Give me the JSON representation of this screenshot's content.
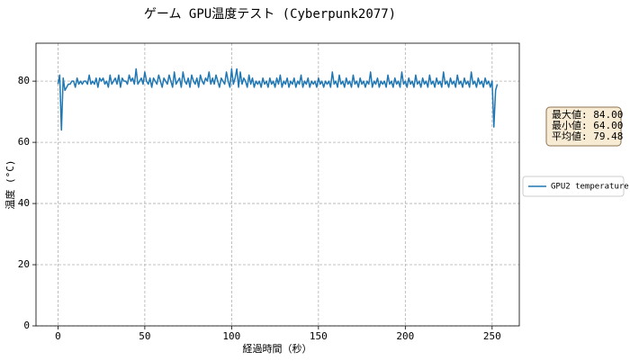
{
  "chart_data": {
    "type": "line",
    "title": "ゲーム GPU温度テスト (Cyberpunk2077)",
    "x_label": "経過時間（秒）",
    "y_label": "温度 (°C)",
    "xlim": [
      -12.65,
      265.65
    ],
    "xticks": [
      0,
      50,
      100,
      150,
      200,
      250
    ],
    "ylim": [
      0,
      92.4
    ],
    "yticks": [
      0,
      20,
      40,
      60,
      80
    ],
    "grid": true,
    "legend": "outside-right",
    "annotations": [
      "最大値: 84.00",
      "最小値: 64.00",
      "平均値: 79.48"
    ],
    "x": [
      0,
      1,
      2,
      3,
      4,
      5,
      6,
      7,
      8,
      9,
      10,
      11,
      12,
      13,
      14,
      15,
      16,
      17,
      18,
      19,
      20,
      21,
      22,
      23,
      24,
      25,
      26,
      27,
      28,
      29,
      30,
      31,
      32,
      33,
      34,
      35,
      36,
      37,
      38,
      39,
      40,
      41,
      42,
      43,
      44,
      45,
      46,
      47,
      48,
      49,
      50,
      51,
      52,
      53,
      54,
      55,
      56,
      57,
      58,
      59,
      60,
      61,
      62,
      63,
      64,
      65,
      66,
      67,
      68,
      69,
      70,
      71,
      72,
      73,
      74,
      75,
      76,
      77,
      78,
      79,
      80,
      81,
      82,
      83,
      84,
      85,
      86,
      87,
      88,
      89,
      90,
      91,
      92,
      93,
      94,
      95,
      96,
      97,
      98,
      99,
      100,
      101,
      102,
      103,
      104,
      105,
      106,
      107,
      108,
      109,
      110,
      111,
      112,
      113,
      114,
      115,
      116,
      117,
      118,
      119,
      120,
      121,
      122,
      123,
      124,
      125,
      126,
      127,
      128,
      129,
      130,
      131,
      132,
      133,
      134,
      135,
      136,
      137,
      138,
      139,
      140,
      141,
      142,
      143,
      144,
      145,
      146,
      147,
      148,
      149,
      150,
      151,
      152,
      153,
      154,
      155,
      156,
      157,
      158,
      159,
      160,
      161,
      162,
      163,
      164,
      165,
      166,
      167,
      168,
      169,
      170,
      171,
      172,
      173,
      174,
      175,
      176,
      177,
      178,
      179,
      180,
      181,
      182,
      183,
      184,
      185,
      186,
      187,
      188,
      189,
      190,
      191,
      192,
      193,
      194,
      195,
      196,
      197,
      198,
      199,
      200,
      201,
      202,
      203,
      204,
      205,
      206,
      207,
      208,
      209,
      210,
      211,
      212,
      213,
      214,
      215,
      216,
      217,
      218,
      219,
      220,
      221,
      222,
      223,
      224,
      225,
      226,
      227,
      228,
      229,
      230,
      231,
      232,
      233,
      234,
      235,
      236,
      237,
      238,
      239,
      240,
      241,
      242,
      243,
      244,
      245,
      246,
      247,
      248,
      249,
      250,
      251,
      252,
      253
    ],
    "series": [
      {
        "name": "GPU2 temperature",
        "color": "#1f77b4",
        "values": [
          79,
          82,
          64,
          81,
          77,
          78,
          79,
          79,
          80,
          80,
          78,
          81,
          79,
          80,
          79,
          80,
          80,
          79,
          82,
          79,
          80,
          79,
          81,
          78,
          81,
          80,
          81,
          79,
          80,
          78,
          82,
          79,
          80,
          81,
          79,
          82,
          78,
          81,
          80,
          80,
          79,
          82,
          80,
          81,
          79,
          84,
          79,
          80,
          81,
          79,
          83,
          80,
          79,
          81,
          78,
          81,
          80,
          79,
          82,
          80,
          78,
          81,
          80,
          79,
          82,
          80,
          78,
          83,
          79,
          80,
          81,
          78,
          83,
          80,
          79,
          81,
          78,
          82,
          80,
          79,
          81,
          78,
          82,
          80,
          79,
          81,
          80,
          83,
          79,
          81,
          79,
          82,
          80,
          78,
          81,
          80,
          79,
          83,
          80,
          78,
          84,
          79,
          81,
          84,
          78,
          83,
          79,
          81,
          80,
          78,
          82,
          79,
          81,
          78,
          80,
          79,
          80,
          78,
          81,
          79,
          80,
          78,
          81,
          79,
          80,
          78,
          81,
          79,
          82,
          78,
          80,
          79,
          81,
          78,
          80,
          79,
          81,
          78,
          80,
          79,
          82,
          78,
          80,
          79,
          81,
          78,
          80,
          79,
          80,
          78,
          81,
          79,
          80,
          78,
          80,
          79,
          80,
          78,
          83,
          79,
          80,
          78,
          82,
          79,
          80,
          78,
          81,
          79,
          80,
          78,
          82,
          79,
          80,
          78,
          81,
          79,
          80,
          78,
          80,
          79,
          83,
          78,
          80,
          79,
          81,
          78,
          80,
          79,
          80,
          78,
          82,
          79,
          80,
          78,
          81,
          79,
          80,
          78,
          83,
          79,
          80,
          78,
          81,
          79,
          80,
          78,
          82,
          79,
          80,
          78,
          81,
          79,
          80,
          78,
          82,
          79,
          80,
          78,
          81,
          79,
          80,
          78,
          83,
          79,
          80,
          78,
          81,
          79,
          80,
          78,
          82,
          79,
          80,
          78,
          81,
          79,
          80,
          78,
          83,
          79,
          80,
          78,
          81,
          79,
          80,
          78,
          81,
          79,
          80,
          78,
          80,
          65,
          77,
          79
        ]
      }
    ]
  }
}
